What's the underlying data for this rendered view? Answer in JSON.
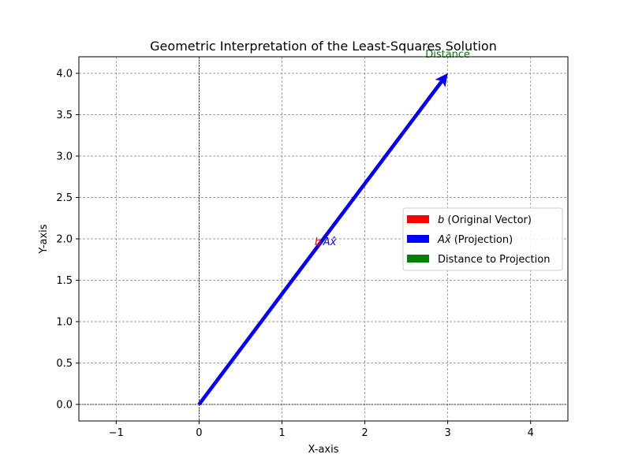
{
  "chart_data": {
    "type": "line",
    "title": "Geometric Interpretation of the Least-Squares Solution",
    "xlabel": "X-axis",
    "ylabel": "Y-axis",
    "xlim": [
      -1.45,
      4.45
    ],
    "ylim": [
      -0.2,
      4.2
    ],
    "x_ticks": [
      -1,
      0,
      1,
      2,
      3,
      4
    ],
    "x_tick_labels": [
      "−1",
      "0",
      "1",
      "2",
      "3",
      "4"
    ],
    "y_ticks": [
      0.0,
      0.5,
      1.0,
      1.5,
      2.0,
      2.5,
      3.0,
      3.5,
      4.0
    ],
    "y_tick_labels": [
      "0.0",
      "0.5",
      "1.0",
      "1.5",
      "2.0",
      "2.5",
      "3.0",
      "3.5",
      "4.0"
    ],
    "grid": true,
    "legend_position": "center-right",
    "series": [
      {
        "name": "b (Original Vector)",
        "legend_symbol": "b",
        "legend_text": " (Original Vector)",
        "color": "#ff0000",
        "x": [
          0,
          3
        ],
        "y": [
          0,
          4
        ]
      },
      {
        "name": "Ax̂ (Projection)",
        "legend_symbol": "Ax̂",
        "legend_text": " (Projection)",
        "color": "#0000ff",
        "x": [
          0,
          3
        ],
        "y": [
          0,
          4
        ]
      },
      {
        "name": "Distance to Projection",
        "legend_symbol": "",
        "legend_text": "Distance to Projection",
        "color": "#008000",
        "x": [
          3,
          3
        ],
        "y": [
          4,
          4
        ]
      }
    ],
    "annotations": [
      {
        "text": "b",
        "x": 1.5,
        "y": 2.0,
        "color": "#ff0000"
      },
      {
        "text": "Ax̂",
        "x": 1.5,
        "y": 2.0,
        "color": "#0000ff"
      },
      {
        "text": "Distance",
        "x": 3.0,
        "y": 4.0,
        "color": "#008000"
      }
    ]
  }
}
